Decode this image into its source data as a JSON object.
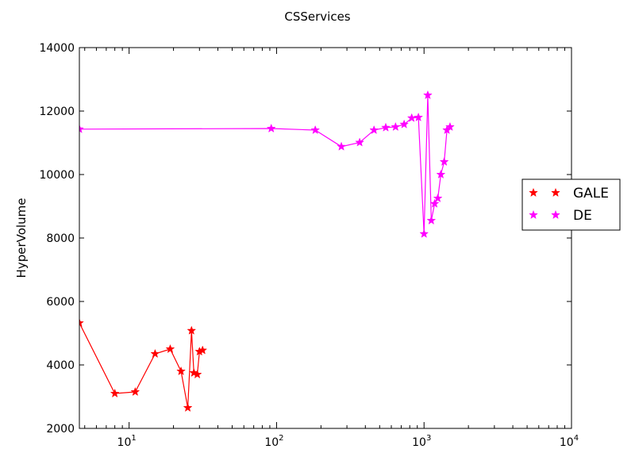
{
  "chart_data": {
    "type": "line",
    "title": "CSServices",
    "xlabel": "",
    "ylabel": "HyperVolume",
    "xscale": "log",
    "xlim": [
      4.6,
      10000
    ],
    "ylim": [
      2000,
      14000
    ],
    "grid": false,
    "legend_position": "right, outside plot",
    "x_ticks": [
      {
        "value": 10,
        "base": "10",
        "exp": "1"
      },
      {
        "value": 100,
        "base": "10",
        "exp": "2"
      },
      {
        "value": 1000,
        "base": "10",
        "exp": "3"
      },
      {
        "value": 10000,
        "base": "10",
        "exp": "4"
      }
    ],
    "y_ticks": [
      {
        "value": 2000,
        "label": "2000"
      },
      {
        "value": 4000,
        "label": "4000"
      },
      {
        "value": 6000,
        "label": "6000"
      },
      {
        "value": 8000,
        "label": "8000"
      },
      {
        "value": 10000,
        "label": "10000"
      },
      {
        "value": 12000,
        "label": "12000"
      },
      {
        "value": 14000,
        "label": "14000"
      }
    ],
    "series": [
      {
        "name": "GALE",
        "color": "#ff0000",
        "marker": "star",
        "points": [
          [
            4.6,
            5320
          ],
          [
            8,
            3100
          ],
          [
            11,
            3150
          ],
          [
            15,
            4350
          ],
          [
            19,
            4500
          ],
          [
            22.5,
            3800
          ],
          [
            25,
            2650
          ],
          [
            26.5,
            5080
          ],
          [
            27.5,
            3750
          ],
          [
            29,
            3700
          ],
          [
            30,
            4420
          ],
          [
            31.5,
            4460
          ]
        ]
      },
      {
        "name": "DE",
        "color": "#ff00ff",
        "marker": "star",
        "points": [
          [
            4.6,
            11430
          ],
          [
            92,
            11450
          ],
          [
            183,
            11400
          ],
          [
            275,
            10880
          ],
          [
            366,
            11010
          ],
          [
            458,
            11400
          ],
          [
            550,
            11480
          ],
          [
            641,
            11500
          ],
          [
            733,
            11580
          ],
          [
            825,
            11780
          ],
          [
            916,
            11800
          ],
          [
            1000,
            8130
          ],
          [
            1060,
            12500
          ],
          [
            1120,
            8550
          ],
          [
            1180,
            9080
          ],
          [
            1240,
            9250
          ],
          [
            1300,
            10000
          ],
          [
            1370,
            10400
          ],
          [
            1430,
            11400
          ],
          [
            1500,
            11500
          ]
        ]
      }
    ]
  }
}
